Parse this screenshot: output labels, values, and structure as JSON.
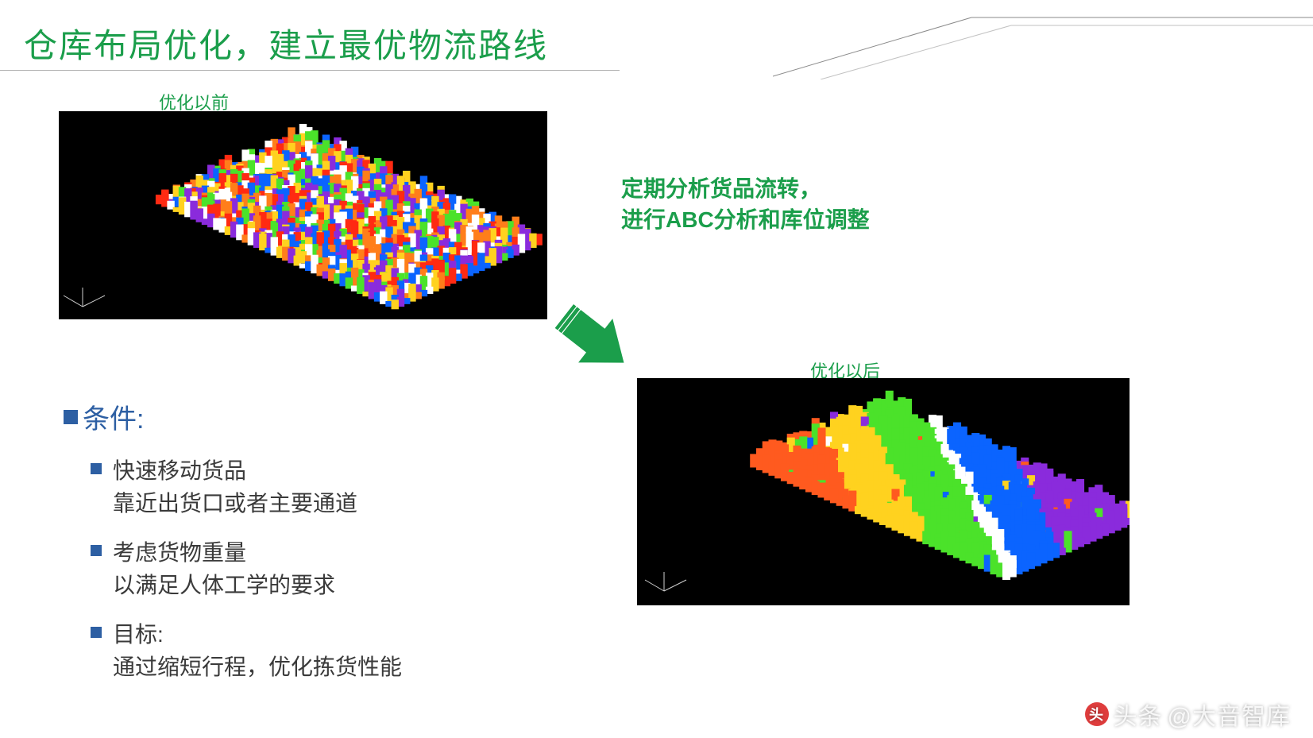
{
  "title": "仓库布局优化，建立最优物流路线",
  "title_color": "#1b9e4b",
  "captions": {
    "before": "优化以前",
    "after": "优化以后"
  },
  "analysis": {
    "line1": "定期分析货品流转，",
    "line2": "进行ABC分析和库位调整"
  },
  "arrow": {
    "fill": "#1b9e4b",
    "stroke": "#ffffff"
  },
  "bullets": {
    "heading": "条件:",
    "heading_color": "#2d5fa3",
    "square_color": "#2d5fa3",
    "item_text_color": "#3a3a3a",
    "items": [
      {
        "line1": "快速移动货品",
        "line2": "靠近出货口或者主要通道"
      },
      {
        "line1": "考虑货物重量",
        "line2": "以满足人体工学的要求"
      },
      {
        "line1": "目标:",
        "line2": "通过缩短行程，优化拣货性能"
      }
    ]
  },
  "viz_before": {
    "type": "isometric-3d-warehouse-scatter",
    "background": "#000000",
    "note": "random color distribution",
    "palette": [
      "#ff2a12",
      "#ff7e1a",
      "#ffd21f",
      "#4be22a",
      "#0b64ff",
      "#8a2bdc",
      "#ffffff"
    ],
    "grid": {
      "cols": 42,
      "rows": 26
    },
    "tilt_deg": 24
  },
  "viz_after": {
    "type": "isometric-3d-warehouse-banded",
    "background": "#000000",
    "note": "sorted/banded color zones after optimization",
    "bands": [
      {
        "color": "#ff5a1f",
        "fraction": 0.26
      },
      {
        "color": "#ffd21f",
        "fraction": 0.16
      },
      {
        "color": "#4be22a",
        "fraction": 0.18
      },
      {
        "color": "#ffffff",
        "fraction": 0.04
      },
      {
        "color": "#0b64ff",
        "fraction": 0.16
      },
      {
        "color": "#8a2bdc",
        "fraction": 0.2
      }
    ],
    "grid": {
      "cols": 42,
      "rows": 22
    },
    "tilt_deg": 24
  },
  "watermark": {
    "prefix": "头条",
    "text": "@大音智库"
  }
}
